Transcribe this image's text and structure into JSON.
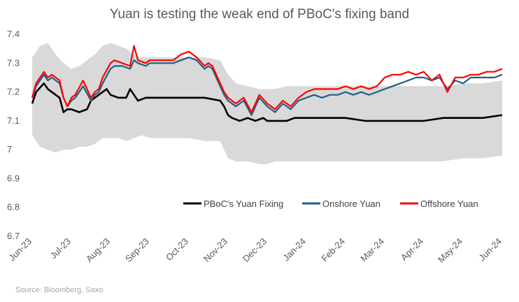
{
  "chart_data": {
    "type": "line",
    "title": "Yuan is testing the weak end of PBoC's fixing band",
    "source": "Source: Bloomberg, Saxo",
    "ylim": [
      6.7,
      7.4
    ],
    "y_ticks": [
      "6.7",
      "6.8",
      "6.9",
      "7",
      "7.1",
      "7.2",
      "7.3",
      "7.4"
    ],
    "x_ticks": [
      "Jun-23",
      "Jul-23",
      "Aug-23",
      "Sep-23",
      "Oct-23",
      "Nov-23",
      "Dec-23",
      "Jan-24",
      "Feb-24",
      "Mar-24",
      "Apr-24",
      "May-24",
      "Jun-24"
    ],
    "grid": false,
    "legend_position": "inside-right",
    "x_index_range": [
      0,
      12
    ],
    "band": {
      "x": [
        0,
        0.2,
        0.4,
        0.6,
        0.8,
        1.0,
        1.2,
        1.4,
        1.6,
        1.8,
        2.0,
        2.2,
        2.4,
        2.6,
        2.8,
        3.0,
        3.3,
        3.6,
        4.0,
        4.4,
        4.8,
        5.0,
        5.2,
        5.5,
        5.8,
        6.0,
        6.2,
        6.5,
        7.0,
        7.5,
        8.0,
        8.5,
        9.0,
        9.5,
        10.0,
        10.5,
        11.0,
        11.5,
        12.0
      ],
      "upper": [
        7.32,
        7.36,
        7.37,
        7.33,
        7.3,
        7.28,
        7.29,
        7.31,
        7.33,
        7.36,
        7.37,
        7.36,
        7.35,
        7.33,
        7.32,
        7.32,
        7.32,
        7.32,
        7.32,
        7.32,
        7.31,
        7.26,
        7.23,
        7.22,
        7.21,
        7.21,
        7.21,
        7.22,
        7.22,
        7.22,
        7.22,
        7.22,
        7.22,
        7.22,
        7.22,
        7.22,
        7.23,
        7.23,
        7.24
      ],
      "lower": [
        7.05,
        7.01,
        7.0,
        6.99,
        7.0,
        7.0,
        7.01,
        7.01,
        7.02,
        7.04,
        7.04,
        7.04,
        7.03,
        7.04,
        7.05,
        7.04,
        7.04,
        7.04,
        7.04,
        7.03,
        7.03,
        6.97,
        6.96,
        6.96,
        6.95,
        6.95,
        6.96,
        6.96,
        6.96,
        6.96,
        6.96,
        6.96,
        6.96,
        6.96,
        6.96,
        6.96,
        6.97,
        6.97,
        6.98
      ]
    },
    "series": [
      {
        "name": "PBoC's Yuan Fixing",
        "color": "#000000",
        "x": [
          0,
          0.1,
          0.3,
          0.4,
          0.5,
          0.7,
          0.8,
          0.9,
          1.0,
          1.2,
          1.4,
          1.5,
          1.6,
          1.8,
          1.9,
          2.0,
          2.2,
          2.4,
          2.5,
          2.6,
          2.7,
          2.9,
          3.0,
          3.3,
          3.6,
          4.0,
          4.4,
          4.8,
          4.9,
          5.0,
          5.1,
          5.3,
          5.5,
          5.7,
          5.9,
          6.0,
          6.1,
          6.3,
          6.5,
          6.7,
          7.0,
          7.5,
          8.0,
          8.5,
          9.0,
          9.5,
          10.0,
          10.5,
          11.0,
          11.5,
          12.0
        ],
        "values": [
          7.16,
          7.2,
          7.23,
          7.21,
          7.2,
          7.18,
          7.13,
          7.14,
          7.14,
          7.13,
          7.14,
          7.17,
          7.18,
          7.2,
          7.21,
          7.19,
          7.18,
          7.18,
          7.21,
          7.19,
          7.17,
          7.18,
          7.18,
          7.18,
          7.18,
          7.18,
          7.18,
          7.17,
          7.15,
          7.12,
          7.11,
          7.1,
          7.11,
          7.1,
          7.11,
          7.1,
          7.1,
          7.1,
          7.1,
          7.11,
          7.11,
          7.11,
          7.11,
          7.1,
          7.1,
          7.1,
          7.1,
          7.11,
          7.11,
          7.11,
          7.12
        ]
      },
      {
        "name": "Onshore Yuan",
        "color": "#1f5f85",
        "x": [
          0,
          0.1,
          0.3,
          0.4,
          0.5,
          0.7,
          0.8,
          0.9,
          1.0,
          1.1,
          1.3,
          1.5,
          1.6,
          1.7,
          1.8,
          2.0,
          2.1,
          2.3,
          2.5,
          2.6,
          2.7,
          2.9,
          3.0,
          3.3,
          3.6,
          3.8,
          4.0,
          4.2,
          4.4,
          4.5,
          4.6,
          4.8,
          4.9,
          5.0,
          5.2,
          5.4,
          5.6,
          5.8,
          6.0,
          6.2,
          6.4,
          6.6,
          6.8,
          7.0,
          7.2,
          7.4,
          7.6,
          7.8,
          8.0,
          8.2,
          8.4,
          8.6,
          8.8,
          9.0,
          9.2,
          9.4,
          9.6,
          9.8,
          10.0,
          10.2,
          10.4,
          10.6,
          10.8,
          11.0,
          11.2,
          11.4,
          11.6,
          11.8,
          12.0
        ],
        "values": [
          7.18,
          7.22,
          7.26,
          7.24,
          7.25,
          7.23,
          7.18,
          7.15,
          7.17,
          7.18,
          7.22,
          7.17,
          7.19,
          7.2,
          7.23,
          7.28,
          7.29,
          7.29,
          7.28,
          7.31,
          7.3,
          7.29,
          7.3,
          7.3,
          7.3,
          7.31,
          7.32,
          7.31,
          7.28,
          7.29,
          7.28,
          7.22,
          7.19,
          7.17,
          7.15,
          7.17,
          7.12,
          7.18,
          7.15,
          7.13,
          7.16,
          7.14,
          7.17,
          7.18,
          7.19,
          7.18,
          7.19,
          7.19,
          7.2,
          7.19,
          7.2,
          7.19,
          7.2,
          7.21,
          7.22,
          7.23,
          7.24,
          7.25,
          7.25,
          7.24,
          7.25,
          7.21,
          7.24,
          7.23,
          7.25,
          7.25,
          7.25,
          7.25,
          7.26
        ]
      },
      {
        "name": "Offshore Yuan",
        "color": "#ff0000",
        "x": [
          0,
          0.1,
          0.3,
          0.4,
          0.5,
          0.7,
          0.8,
          0.9,
          1.0,
          1.1,
          1.3,
          1.5,
          1.6,
          1.7,
          1.8,
          2.0,
          2.1,
          2.3,
          2.5,
          2.6,
          2.7,
          2.9,
          3.0,
          3.3,
          3.6,
          3.8,
          4.0,
          4.2,
          4.4,
          4.5,
          4.6,
          4.8,
          4.9,
          5.0,
          5.2,
          5.4,
          5.6,
          5.8,
          6.0,
          6.2,
          6.4,
          6.6,
          6.8,
          7.0,
          7.2,
          7.4,
          7.6,
          7.8,
          8.0,
          8.2,
          8.4,
          8.6,
          8.8,
          9.0,
          9.2,
          9.4,
          9.6,
          9.8,
          10.0,
          10.2,
          10.4,
          10.6,
          10.8,
          11.0,
          11.2,
          11.4,
          11.6,
          11.8,
          12.0
        ],
        "values": [
          7.18,
          7.23,
          7.27,
          7.25,
          7.26,
          7.24,
          7.18,
          7.15,
          7.18,
          7.19,
          7.24,
          7.18,
          7.2,
          7.21,
          7.25,
          7.3,
          7.31,
          7.3,
          7.29,
          7.36,
          7.31,
          7.3,
          7.31,
          7.31,
          7.31,
          7.33,
          7.34,
          7.32,
          7.29,
          7.3,
          7.29,
          7.23,
          7.2,
          7.18,
          7.16,
          7.18,
          7.13,
          7.19,
          7.16,
          7.14,
          7.17,
          7.15,
          7.18,
          7.2,
          7.21,
          7.21,
          7.21,
          7.21,
          7.22,
          7.21,
          7.22,
          7.21,
          7.22,
          7.25,
          7.26,
          7.26,
          7.27,
          7.26,
          7.27,
          7.24,
          7.26,
          7.2,
          7.25,
          7.25,
          7.26,
          7.26,
          7.27,
          7.27,
          7.28
        ]
      }
    ]
  }
}
